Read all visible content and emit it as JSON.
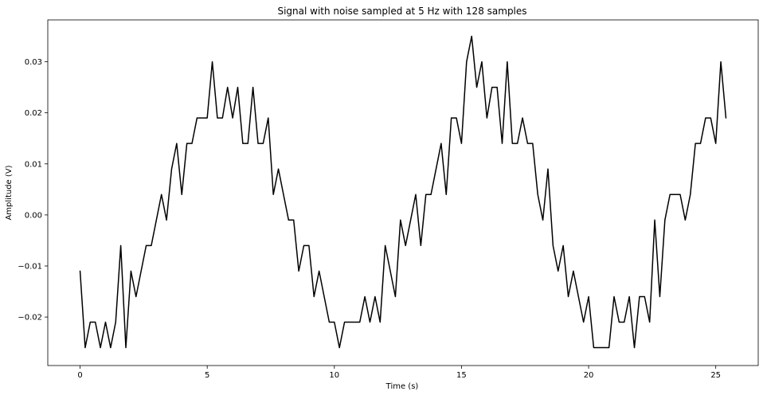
{
  "chart_data": {
    "type": "line",
    "title": "Signal with noise sampled at 5 Hz with 128 samples",
    "xlabel": "Time (s)",
    "ylabel": "Amplitude (V)",
    "xlim": [
      -1.27,
      26.67
    ],
    "ylim": [
      -0.0295,
      0.0382
    ],
    "xticks": [
      0,
      5,
      10,
      15,
      20,
      25
    ],
    "xtick_labels": [
      "0",
      "5",
      "10",
      "15",
      "20",
      "25"
    ],
    "yticks": [
      -0.02,
      -0.01,
      0.0,
      0.01,
      0.02,
      0.03
    ],
    "ytick_labels": [
      "−0.02",
      "−0.01",
      "0.00",
      "0.01",
      "0.02",
      "0.03"
    ],
    "grid": false,
    "line_color": "#000000",
    "x": [
      0.0,
      0.2,
      0.4,
      0.6,
      0.8,
      1.0,
      1.2,
      1.4,
      1.6,
      1.8,
      2.0,
      2.2,
      2.4,
      2.6,
      2.8,
      3.0,
      3.2,
      3.4,
      3.6,
      3.8,
      4.0,
      4.2,
      4.4,
      4.6,
      4.8,
      5.0,
      5.2,
      5.4,
      5.6,
      5.8,
      6.0,
      6.2,
      6.4,
      6.6,
      6.8,
      7.0,
      7.2,
      7.4,
      7.6,
      7.8,
      8.0,
      8.2,
      8.4,
      8.6,
      8.8,
      9.0,
      9.2,
      9.4,
      9.6,
      9.8,
      10.0,
      10.2,
      10.4,
      10.6,
      10.8,
      11.0,
      11.2,
      11.4,
      11.6,
      11.8,
      12.0,
      12.2,
      12.4,
      12.6,
      12.8,
      13.0,
      13.2,
      13.4,
      13.6,
      13.8,
      14.0,
      14.2,
      14.4,
      14.6,
      14.8,
      15.0,
      15.2,
      15.4,
      15.6,
      15.8,
      16.0,
      16.2,
      16.4,
      16.6,
      16.8,
      17.0,
      17.2,
      17.4,
      17.6,
      17.8,
      18.0,
      18.2,
      18.4,
      18.6,
      18.8,
      19.0,
      19.2,
      19.4,
      19.6,
      19.8,
      20.0,
      20.2,
      20.4,
      20.6,
      20.8,
      21.0,
      21.2,
      21.4,
      21.6,
      21.8,
      22.0,
      22.2,
      22.4,
      22.6,
      22.8,
      23.0,
      23.2,
      23.4,
      23.6,
      23.8,
      24.0,
      24.2,
      24.4,
      24.6,
      24.8,
      25.0,
      25.2,
      25.4
    ],
    "y": [
      -0.011,
      -0.026,
      -0.021,
      -0.021,
      -0.026,
      -0.021,
      -0.026,
      -0.021,
      -0.006,
      -0.026,
      -0.011,
      -0.016,
      -0.011,
      -0.006,
      -0.006,
      -0.001,
      0.004,
      -0.001,
      0.009,
      0.014,
      0.004,
      0.014,
      0.014,
      0.019,
      0.019,
      0.019,
      0.03,
      0.019,
      0.019,
      0.025,
      0.019,
      0.025,
      0.014,
      0.014,
      0.025,
      0.014,
      0.014,
      0.019,
      0.004,
      0.009,
      0.004,
      -0.001,
      -0.001,
      -0.011,
      -0.006,
      -0.006,
      -0.016,
      -0.011,
      -0.016,
      -0.021,
      -0.021,
      -0.026,
      -0.021,
      -0.021,
      -0.021,
      -0.021,
      -0.016,
      -0.021,
      -0.016,
      -0.021,
      -0.006,
      -0.011,
      -0.016,
      -0.001,
      -0.006,
      -0.001,
      0.004,
      -0.006,
      0.004,
      0.004,
      0.009,
      0.014,
      0.004,
      0.019,
      0.019,
      0.014,
      0.03,
      0.035,
      0.025,
      0.03,
      0.019,
      0.025,
      0.025,
      0.014,
      0.03,
      0.014,
      0.014,
      0.019,
      0.014,
      0.014,
      0.004,
      -0.001,
      0.009,
      -0.006,
      -0.011,
      -0.006,
      -0.016,
      -0.011,
      -0.016,
      -0.021,
      -0.016,
      -0.026,
      -0.026,
      -0.026,
      -0.026,
      -0.016,
      -0.021,
      -0.021,
      -0.016,
      -0.026,
      -0.016,
      -0.016,
      -0.021,
      -0.001,
      -0.016,
      -0.001,
      0.004,
      0.004,
      0.004,
      -0.001,
      0.004,
      0.014,
      0.014,
      0.019,
      0.019,
      0.014,
      0.03,
      0.019
    ]
  }
}
